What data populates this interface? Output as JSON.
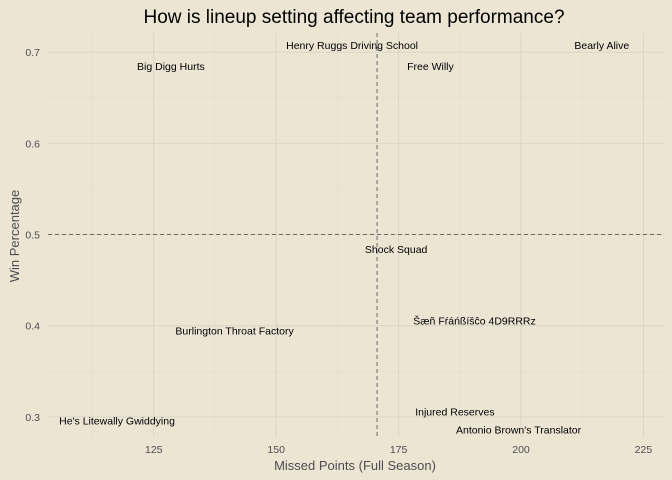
{
  "chart_data": {
    "type": "scatter",
    "title": "How is lineup setting affecting team performance?",
    "xlabel": "Missed Points (Full Season)",
    "ylabel": "Win Percentage",
    "xlim": [
      103.4,
      229.2
    ],
    "ylim": [
      0.278,
      0.721
    ],
    "x_ticks": [
      125,
      150,
      175,
      200,
      225
    ],
    "y_ticks": [
      0.3,
      0.4,
      0.5,
      0.6,
      0.7
    ],
    "x_tick_labels": [
      "125",
      "150",
      "175",
      "200",
      "225"
    ],
    "y_tick_labels": [
      "0.3",
      "0.4",
      "0.5",
      "0.6",
      "0.7"
    ],
    "grid": true,
    "reference_lines": {
      "vertical_x": 170.6,
      "horizontal_y": 0.5,
      "style": "dashed"
    },
    "points": [
      {
        "label": "Henry Ruggs Driving School",
        "x": 165.5,
        "y": 0.708
      },
      {
        "label": "Bearly Alive",
        "x": 216.5,
        "y": 0.708
      },
      {
        "label": "Big Digg Hurts",
        "x": 128.5,
        "y": 0.685
      },
      {
        "label": "Free Willy",
        "x": 181.5,
        "y": 0.685
      },
      {
        "label": "Shock Squad",
        "x": 174.5,
        "y": 0.484
      },
      {
        "label": "Šæñ Fŕáńßíšĉo 4D9RRRz",
        "x": 190.5,
        "y": 0.406
      },
      {
        "label": "Burlington Throat Factory",
        "x": 141.5,
        "y": 0.395
      },
      {
        "label": "Injured Reserves",
        "x": 186.5,
        "y": 0.306
      },
      {
        "label": "He's Litewally Gwiddying",
        "x": 117.5,
        "y": 0.296
      },
      {
        "label": "Antonio Brown's Translator",
        "x": 199.5,
        "y": 0.286
      }
    ]
  }
}
